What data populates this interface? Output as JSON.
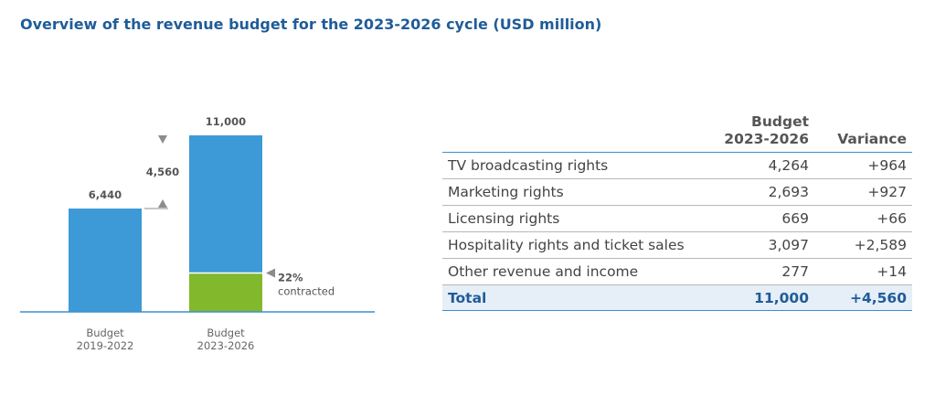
{
  "title": "Overview of the revenue budget for the 2023-2026 cycle (USD million)",
  "colors": {
    "bar": "#3d9ad6",
    "contracted": "#82b82b",
    "axis": "#3d8fcf",
    "marker": "#8c8c8c",
    "title": "#1f5c99"
  },
  "chart_data": [
    {
      "type": "bar",
      "categories": [
        "Budget 2019-2022",
        "Budget 2023-2026"
      ],
      "category_labels": [
        [
          "Budget",
          "2019-2022"
        ],
        [
          "Budget",
          "2023-2026"
        ]
      ],
      "values": [
        6440,
        11000
      ],
      "value_labels": [
        "6,440",
        "11,000"
      ],
      "variance": {
        "value": 4560,
        "label": "4,560"
      },
      "contracted": {
        "share": 0.22,
        "percent_label": "22%",
        "text": "contracted"
      },
      "ylim": [
        0,
        11000
      ],
      "grid": false,
      "legend": "none"
    },
    {
      "type": "table",
      "columns": [
        "",
        "Budget\n2023-2026",
        "Variance"
      ],
      "column_lines": [
        [
          ""
        ],
        [
          "Budget",
          "2023-2026"
        ],
        [
          "Variance"
        ]
      ],
      "rows": [
        [
          "TV broadcasting rights",
          "4,264",
          "+964"
        ],
        [
          "Marketing rights",
          "2,693",
          "+927"
        ],
        [
          "Licensing rights",
          "669",
          "+66"
        ],
        [
          "Hospitality rights and ticket sales",
          "3,097",
          "+2,589"
        ],
        [
          "Other revenue and income",
          "277",
          "+14"
        ]
      ],
      "total": [
        "Total",
        "11,000",
        "+4,560"
      ]
    }
  ]
}
